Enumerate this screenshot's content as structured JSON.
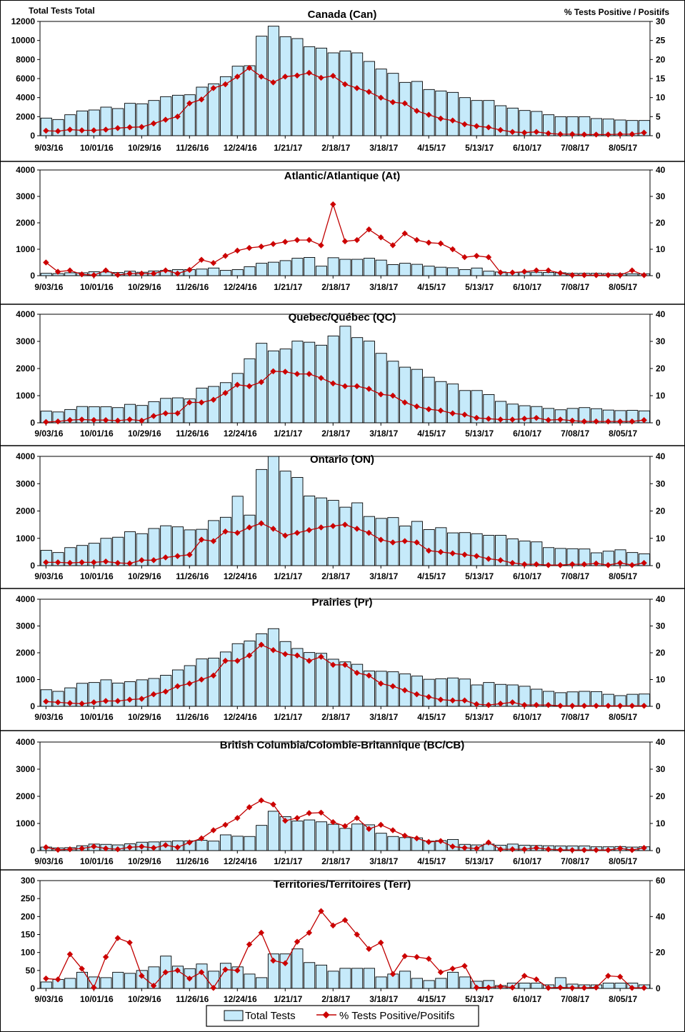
{
  "header": {
    "left_label": "Total Tests  Total",
    "right_label": "% Tests Positive / Positifs"
  },
  "legend": {
    "bars_label": "Total Tests",
    "line_label": "% Tests Positive/Positifs"
  },
  "colors": {
    "bar_fill": "#c6eafa",
    "bar_stroke": "#000000",
    "line": "#c00000",
    "marker": "#cc0000"
  },
  "chart_data": [
    {
      "type": "bar",
      "title": "Canada (Can)",
      "x_tick_labels": [
        "9/03/16",
        "10/01/16",
        "10/29/16",
        "11/26/16",
        "12/24/16",
        "1/21/17",
        "2/18/17",
        "3/18/17",
        "4/15/17",
        "5/13/17",
        "6/10/17",
        "7/08/17",
        "8/05/17"
      ],
      "y_ticks_left": [
        "0",
        "2000",
        "4000",
        "6000",
        "8000",
        "10000",
        "12000"
      ],
      "y_ticks_right": [
        "0",
        "5",
        "10",
        "15",
        "20",
        "25",
        "30"
      ],
      "ylim_left": [
        0,
        12000
      ],
      "ylim_right": [
        0,
        30
      ],
      "series": [
        {
          "name": "Total Tests",
          "values": [
            1850,
            1700,
            2200,
            2600,
            2700,
            3000,
            2850,
            3400,
            3350,
            3700,
            4100,
            4250,
            4300,
            5100,
            5450,
            6200,
            7300,
            7350,
            10450,
            11500,
            10400,
            10200,
            9350,
            9200,
            8700,
            8900,
            8700,
            7800,
            7000,
            6550,
            5600,
            5700,
            4850,
            4700,
            4550,
            4000,
            3700,
            3700,
            3150,
            2900,
            2650,
            2550,
            2200,
            2000,
            2000,
            2000,
            1800,
            1750,
            1650,
            1600,
            1600
          ]
        },
        {
          "name": "% Tests Positive/Positifs",
          "values": [
            1.3,
            1.2,
            1.6,
            1.4,
            1.4,
            1.6,
            2.0,
            2.2,
            2.3,
            3.2,
            4.2,
            5.0,
            8.5,
            9.5,
            12.5,
            13.5,
            15.5,
            17.8,
            15.5,
            14.0,
            15.5,
            15.8,
            16.5,
            15.2,
            15.7,
            13.5,
            12.5,
            11.5,
            10.0,
            8.8,
            8.5,
            6.5,
            5.5,
            4.5,
            4.0,
            3.0,
            2.5,
            2.2,
            1.5,
            1.0,
            0.8,
            1.0,
            0.6,
            0.4,
            0.4,
            0.3,
            0.3,
            0.3,
            0.4,
            0.4,
            0.8
          ]
        }
      ]
    },
    {
      "type": "bar",
      "title": "Atlantic/Atlantique  (At)",
      "x_tick_labels": [
        "9/03/16",
        "10/01/16",
        "10/29/16",
        "11/26/16",
        "12/24/16",
        "1/21/17",
        "2/18/17",
        "3/18/17",
        "4/15/17",
        "5/13/17",
        "6/10/17",
        "7/08/17",
        "8/05/17"
      ],
      "y_ticks_left": [
        "0",
        "1000",
        "2000",
        "3000",
        "4000"
      ],
      "y_ticks_right": [
        "0",
        "10",
        "20",
        "30",
        "40"
      ],
      "ylim_left": [
        0,
        4000
      ],
      "ylim_right": [
        0,
        40
      ],
      "series": [
        {
          "name": "Total Tests",
          "values": [
            90,
            80,
            110,
            110,
            150,
            140,
            120,
            170,
            130,
            180,
            200,
            230,
            230,
            250,
            290,
            200,
            230,
            340,
            470,
            510,
            570,
            660,
            690,
            360,
            680,
            620,
            620,
            660,
            590,
            420,
            470,
            430,
            360,
            320,
            300,
            230,
            290,
            170,
            140,
            120,
            130,
            130,
            120,
            110,
            90,
            90,
            90,
            80,
            80,
            70,
            70
          ]
        },
        {
          "name": "% Tests Positive/Positifs",
          "values": [
            5.0,
            1.5,
            2.0,
            0.5,
            0.2,
            2.0,
            0.3,
            0.8,
            0.8,
            0.8,
            2.0,
            0.8,
            2.2,
            6.0,
            4.8,
            7.5,
            9.5,
            10.5,
            11.0,
            12.0,
            12.8,
            13.5,
            13.5,
            11.5,
            27.0,
            13.0,
            13.5,
            17.5,
            14.5,
            11.5,
            16.0,
            13.5,
            12.5,
            12.2,
            10.0,
            7.0,
            7.5,
            7.0,
            1.2,
            1.2,
            1.5,
            2.0,
            2.0,
            1.0,
            0.2,
            0.2,
            0.2,
            0.2,
            0.2,
            2.0,
            0.2
          ]
        }
      ]
    },
    {
      "type": "bar",
      "title": "Quebec/Québec (QC)",
      "x_tick_labels": [
        "9/03/16",
        "10/01/16",
        "10/29/16",
        "11/26/16",
        "12/24/16",
        "1/21/17",
        "2/18/17",
        "3/18/17",
        "4/15/17",
        "5/13/17",
        "6/10/17",
        "7/08/17",
        "8/05/17"
      ],
      "y_ticks_left": [
        "0",
        "1000",
        "2000",
        "3000",
        "4000"
      ],
      "y_ticks_right": [
        "0",
        "10",
        "20",
        "30",
        "40"
      ],
      "ylim_left": [
        0,
        4000
      ],
      "ylim_right": [
        0,
        40
      ],
      "series": [
        {
          "name": "Total Tests",
          "values": [
            430,
            400,
            490,
            600,
            590,
            590,
            560,
            680,
            640,
            780,
            900,
            920,
            880,
            1280,
            1340,
            1480,
            1820,
            2360,
            2930,
            2650,
            2720,
            3010,
            2970,
            2860,
            3200,
            3560,
            3140,
            3010,
            2560,
            2270,
            2050,
            1970,
            1680,
            1520,
            1430,
            1190,
            1190,
            1040,
            790,
            690,
            630,
            600,
            530,
            480,
            530,
            560,
            520,
            470,
            450,
            460,
            440
          ]
        },
        {
          "name": "% Tests Positive/Positifs",
          "values": [
            0.3,
            0.5,
            1.0,
            1.2,
            1.0,
            1.0,
            0.8,
            1.2,
            0.8,
            2.5,
            3.5,
            3.5,
            7.5,
            7.5,
            8.5,
            11.0,
            14.0,
            13.5,
            15.0,
            19.0,
            18.8,
            18.0,
            18.0,
            16.5,
            14.5,
            13.5,
            13.5,
            12.5,
            10.5,
            10.0,
            7.5,
            6.0,
            5.0,
            4.5,
            3.5,
            3.0,
            1.8,
            1.5,
            1.2,
            1.2,
            1.5,
            1.8,
            1.0,
            1.2,
            0.8,
            0.5,
            0.5,
            0.5,
            0.5,
            0.5,
            1.0
          ]
        }
      ]
    },
    {
      "type": "bar",
      "title": "Ontario (ON)",
      "x_tick_labels": [
        "9/03/16",
        "10/01/16",
        "10/29/16",
        "11/26/16",
        "12/24/16",
        "1/21/17",
        "2/18/17",
        "3/18/17",
        "4/15/17",
        "5/13/17",
        "6/10/17",
        "7/08/17",
        "8/05/17"
      ],
      "y_ticks_left": [
        "0",
        "1000",
        "2000",
        "3000",
        "4000"
      ],
      "y_ticks_right": [
        "0",
        "10",
        "20",
        "30",
        "40"
      ],
      "ylim_left": [
        0,
        4000
      ],
      "ylim_right": [
        0,
        40
      ],
      "series": [
        {
          "name": "Total Tests",
          "values": [
            560,
            480,
            660,
            740,
            820,
            1000,
            1040,
            1240,
            1170,
            1360,
            1460,
            1420,
            1310,
            1330,
            1650,
            1770,
            2540,
            1850,
            3520,
            4000,
            3460,
            3230,
            2550,
            2480,
            2390,
            2140,
            2300,
            1800,
            1730,
            1760,
            1450,
            1620,
            1320,
            1390,
            1200,
            1210,
            1170,
            1110,
            1110,
            980,
            900,
            870,
            660,
            630,
            620,
            610,
            470,
            530,
            580,
            480,
            430
          ]
        },
        {
          "name": "% Tests Positive/Positifs",
          "values": [
            1.2,
            1.2,
            1.0,
            1.2,
            1.2,
            1.5,
            1.0,
            0.8,
            2.0,
            2.0,
            3.0,
            3.5,
            4.0,
            9.5,
            9.0,
            12.5,
            12.0,
            14.0,
            15.5,
            13.5,
            11.0,
            12.0,
            13.0,
            14.0,
            14.5,
            15.0,
            13.5,
            12.0,
            9.5,
            8.5,
            9.0,
            8.5,
            5.5,
            5.0,
            4.5,
            4.0,
            3.5,
            2.5,
            2.0,
            1.0,
            0.5,
            0.5,
            0.2,
            0.2,
            0.5,
            0.5,
            0.8,
            0.2,
            1.0,
            0.2,
            1.0
          ]
        }
      ]
    },
    {
      "type": "bar",
      "title": "Prairies (Pr)",
      "x_tick_labels": [
        "9/03/16",
        "10/01/16",
        "10/29/16",
        "11/26/16",
        "12/24/16",
        "1/21/17",
        "2/18/17",
        "3/18/17",
        "4/15/17",
        "5/13/17",
        "6/10/17",
        "7/08/17",
        "8/05/17"
      ],
      "y_ticks_left": [
        "0",
        "1000",
        "2000",
        "3000",
        "4000"
      ],
      "y_ticks_right": [
        "0",
        "10",
        "20",
        "30",
        "40"
      ],
      "ylim_left": [
        0,
        4000
      ],
      "ylim_right": [
        0,
        40
      ],
      "series": [
        {
          "name": "Total Tests",
          "values": [
            620,
            560,
            690,
            860,
            890,
            990,
            870,
            920,
            990,
            1040,
            1160,
            1360,
            1520,
            1770,
            1800,
            2030,
            2340,
            2440,
            2710,
            2900,
            2420,
            2160,
            2010,
            1980,
            1760,
            1660,
            1570,
            1320,
            1310,
            1290,
            1210,
            1130,
            1010,
            1030,
            1060,
            1020,
            800,
            890,
            820,
            800,
            750,
            640,
            560,
            510,
            540,
            560,
            550,
            450,
            400,
            450,
            460
          ]
        },
        {
          "name": "% Tests Positive/Positifs",
          "values": [
            1.8,
            1.5,
            1.2,
            1.0,
            1.5,
            2.0,
            2.0,
            2.5,
            2.8,
            4.5,
            5.5,
            7.5,
            8.5,
            10.0,
            11.5,
            17.0,
            17.0,
            19.0,
            23.0,
            21.0,
            19.5,
            19.0,
            17.0,
            18.5,
            15.5,
            15.5,
            12.5,
            11.5,
            8.5,
            7.5,
            6.0,
            4.5,
            3.5,
            2.5,
            2.2,
            2.2,
            0.8,
            0.5,
            1.0,
            1.5,
            0.5,
            0.5,
            0.5,
            0.2,
            0.2,
            0.2,
            0.2,
            0.2,
            0.2,
            0.2,
            0.2
          ]
        }
      ]
    },
    {
      "type": "bar",
      "title": "British Columbia/Colombie-Britannique (BC/CB)",
      "x_tick_labels": [
        "9/03/16",
        "10/01/16",
        "10/29/16",
        "11/26/16",
        "12/24/16",
        "1/21/17",
        "2/18/17",
        "3/18/17",
        "4/15/17",
        "5/13/17",
        "6/10/17",
        "7/08/17",
        "8/05/17"
      ],
      "y_ticks_left": [
        "0",
        "1000",
        "2000",
        "3000",
        "4000"
      ],
      "y_ticks_right": [
        "0",
        "10",
        "20",
        "30",
        "40"
      ],
      "ylim_left": [
        0,
        4000
      ],
      "ylim_right": [
        0,
        40
      ],
      "series": [
        {
          "name": "Total Tests",
          "values": [
            130,
            100,
            110,
            180,
            240,
            230,
            210,
            250,
            310,
            320,
            340,
            360,
            360,
            380,
            350,
            580,
            530,
            520,
            930,
            1450,
            1250,
            1090,
            1130,
            1060,
            970,
            820,
            980,
            950,
            640,
            520,
            480,
            470,
            350,
            370,
            410,
            230,
            210,
            240,
            200,
            240,
            200,
            190,
            180,
            170,
            170,
            170,
            140,
            140,
            150,
            130,
            140
          ]
        },
        {
          "name": "% Tests Positive/Positifs",
          "values": [
            1.2,
            0.3,
            0.5,
            0.8,
            1.5,
            0.8,
            0.5,
            1.2,
            1.5,
            1.0,
            2.0,
            1.2,
            3.0,
            4.5,
            7.5,
            9.5,
            12.0,
            16.0,
            18.5,
            17.0,
            11.0,
            12.0,
            13.8,
            14.0,
            10.5,
            9.0,
            12.0,
            8.0,
            9.5,
            7.5,
            5.5,
            4.5,
            3.2,
            3.5,
            1.5,
            1.0,
            0.8,
            3.0,
            0.5,
            0.5,
            0.5,
            1.0,
            0.5,
            0.3,
            0.2,
            0.2,
            0.2,
            0.2,
            0.8,
            0.2,
            1.0
          ]
        }
      ]
    },
    {
      "type": "bar",
      "title": "Territories/Territoires  (Terr)",
      "x_tick_labels": [
        "9/03/16",
        "10/01/16",
        "10/29/16",
        "11/26/16",
        "12/24/16",
        "1/21/17",
        "2/18/17",
        "3/18/17",
        "4/15/17",
        "5/13/17",
        "6/10/17",
        "7/08/17",
        "8/05/17"
      ],
      "y_ticks_left": [
        "0",
        "50",
        "100",
        "150",
        "200",
        "250",
        "300"
      ],
      "y_ticks_right": [
        "0",
        "20",
        "40",
        "60"
      ],
      "ylim_left": [
        0,
        300
      ],
      "ylim_right": [
        0,
        60
      ],
      "series": [
        {
          "name": "Total Tests",
          "values": [
            18,
            25,
            28,
            45,
            32,
            30,
            45,
            42,
            50,
            60,
            90,
            62,
            55,
            68,
            48,
            70,
            60,
            40,
            30,
            96,
            96,
            110,
            72,
            65,
            48,
            56,
            56,
            56,
            32,
            40,
            48,
            28,
            22,
            28,
            45,
            32,
            20,
            22,
            8,
            15,
            15,
            15,
            10,
            30,
            12,
            10,
            10,
            15,
            15,
            15,
            10
          ]
        },
        {
          "name": "% Tests Positive/Positifs",
          "values": [
            5.5,
            5.0,
            19.0,
            11.0,
            0.5,
            17.5,
            28.0,
            25.5,
            7.0,
            1.5,
            9.0,
            10.0,
            5.5,
            9.0,
            0.3,
            10.5,
            10.0,
            24.5,
            31.0,
            15.5,
            14.0,
            26.0,
            31.0,
            43.0,
            35.0,
            38.0,
            30.0,
            22.0,
            25.5,
            8.0,
            18.0,
            17.5,
            16.5,
            9.0,
            11.0,
            12.5,
            0.5,
            0.5,
            1.0,
            0.5,
            7.0,
            5.0,
            0.3,
            0.5,
            0.3,
            0.3,
            0.5,
            7.0,
            6.5,
            0.3,
            0.3
          ]
        }
      ]
    }
  ]
}
